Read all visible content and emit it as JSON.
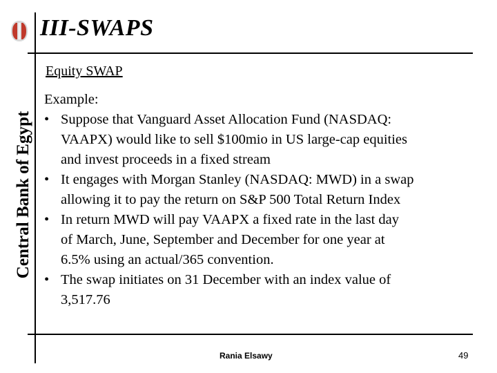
{
  "slide": {
    "title": "III-SWAPS",
    "side_label": "Central Bank of Egypt",
    "logo_icon": "central-bank-emblem-icon",
    "section_heading": "Equity SWAP",
    "intro": "Example:",
    "bullets": [
      {
        "lines": [
          "Suppose that Vanguard Asset Allocation Fund (NASDAQ:",
          "VAAPX) would like to sell $100mio in US large-cap equities",
          "and invest proceeds in a fixed stream"
        ]
      },
      {
        "lines": [
          "It engages with Morgan Stanley (NASDAQ: MWD) in a swap",
          "allowing it to pay the return on S&P 500 Total Return Index"
        ]
      },
      {
        "lines": [
          "In return MWD will pay VAAPX a fixed rate in the last day",
          "of March, June, September and December for one year at",
          "6.5% using an actual/365 convention."
        ]
      },
      {
        "lines": [
          "The swap initiates on 31 December with an index value of",
          "3,517.76"
        ]
      }
    ],
    "bullet_symbol": "•",
    "footer_author": "Rania Elsawy",
    "page_number": "49",
    "colors": {
      "text": "#000000",
      "background": "#ffffff",
      "logo_red": "#c0392b"
    }
  }
}
